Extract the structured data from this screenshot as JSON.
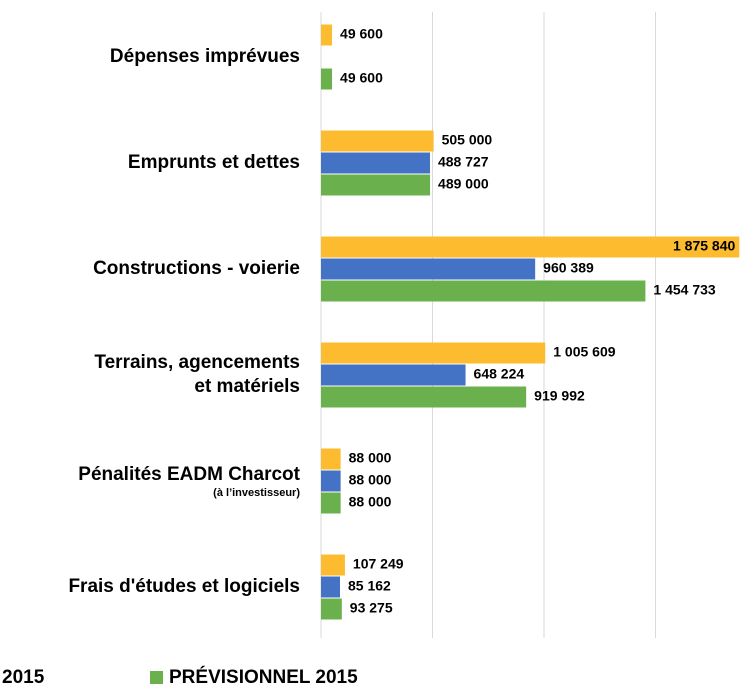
{
  "chart_data": {
    "type": "barh",
    "categories": [
      "Dépenses imprévues",
      "Emprunts et dettes",
      "Constructions - voierie",
      [
        "Terrains, agencements",
        "et matériels"
      ],
      "Pénalités EADM Charcot",
      "Frais d'études et logiciels"
    ],
    "category_notes": [
      null,
      null,
      null,
      null,
      "(à l’investisseur)",
      null
    ],
    "series": [
      {
        "color": "#fdbb2f",
        "values": [
          49600,
          505000,
          1875840,
          1005609,
          88000,
          107249
        ],
        "value_labels": [
          "49 600",
          "505 000",
          "1 875 840",
          "1 005 609",
          "88 000",
          "107 249"
        ]
      },
      {
        "name": "2015",
        "color": "#4472c4",
        "values": [
          null,
          488727,
          960389,
          648224,
          88000,
          85162
        ],
        "value_labels": [
          null,
          "488 727",
          "960 389",
          "648 224",
          "88 000",
          "85 162"
        ]
      },
      {
        "name": "PRÉVISIONNEL 2015",
        "color": "#6ab04c",
        "values": [
          49600,
          489000,
          1454733,
          919992,
          88000,
          93275
        ],
        "value_labels": [
          "49 600",
          "489 000",
          "1 454 733",
          "919 992",
          "88 000",
          "93 275"
        ]
      }
    ],
    "xlim": [
      0,
      2000000
    ],
    "xticks": [
      0,
      500000,
      1000000,
      1500000
    ],
    "grid": true
  }
}
